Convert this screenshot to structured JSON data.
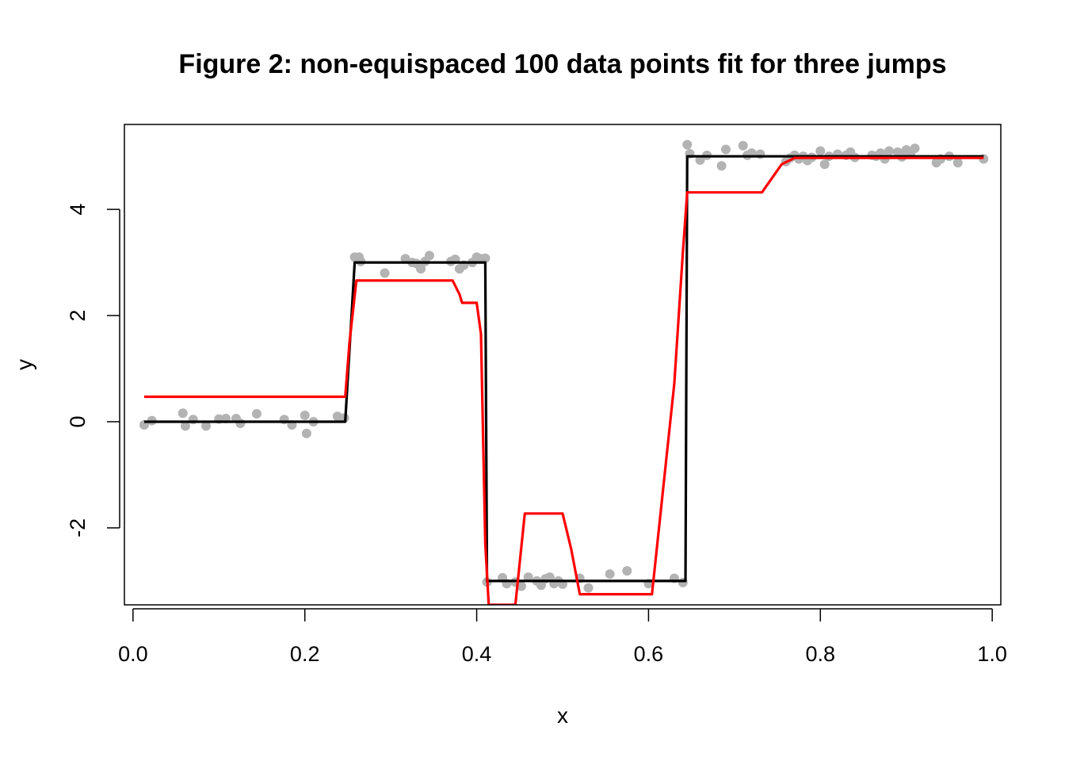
{
  "chart_data": {
    "type": "line",
    "title": "Figure 2: non-equispaced 100 data points fit for three jumps",
    "xlabel": "x",
    "ylabel": "y",
    "xlim": [
      -0.01,
      1.01
    ],
    "ylim": [
      -3.45,
      5.6
    ],
    "x_ticks": [
      0.0,
      0.2,
      0.4,
      0.6,
      0.8,
      1.0
    ],
    "x_tick_labels": [
      "0.0",
      "0.2",
      "0.4",
      "0.6",
      "0.8",
      "1.0"
    ],
    "y_ticks": [
      -2,
      0,
      2,
      4
    ],
    "y_tick_labels": [
      "-2",
      "0",
      "2",
      "4"
    ],
    "grid": false,
    "legend": "none",
    "colors": {
      "points": "#b3b3b3",
      "true_function": "#000000",
      "fitted": "#ff0000"
    },
    "points": {
      "x": [
        0.013,
        0.022,
        0.058,
        0.061,
        0.07,
        0.085,
        0.1,
        0.108,
        0.12,
        0.125,
        0.144,
        0.176,
        0.185,
        0.2,
        0.202,
        0.21,
        0.238,
        0.246,
        0.258,
        0.263,
        0.265,
        0.293,
        0.317,
        0.325,
        0.33,
        0.335,
        0.34,
        0.345,
        0.37,
        0.375,
        0.38,
        0.385,
        0.395,
        0.4,
        0.405,
        0.41,
        0.412,
        0.43,
        0.435,
        0.445,
        0.452,
        0.46,
        0.47,
        0.475,
        0.48,
        0.485,
        0.49,
        0.495,
        0.5,
        0.52,
        0.53,
        0.555,
        0.575,
        0.6,
        0.63,
        0.64,
        0.645,
        0.648,
        0.66,
        0.668,
        0.685,
        0.69,
        0.71,
        0.715,
        0.72,
        0.73,
        0.76,
        0.765,
        0.77,
        0.775,
        0.78,
        0.785,
        0.79,
        0.8,
        0.805,
        0.81,
        0.82,
        0.83,
        0.835,
        0.84,
        0.86,
        0.865,
        0.87,
        0.875,
        0.88,
        0.89,
        0.895,
        0.9,
        0.905,
        0.91,
        0.935,
        0.94,
        0.95,
        0.96,
        0.99
      ],
      "y": [
        -0.06,
        0.02,
        0.16,
        -0.08,
        0.04,
        -0.08,
        0.05,
        0.06,
        0.06,
        -0.03,
        0.15,
        0.04,
        -0.06,
        0.12,
        -0.22,
        0.0,
        0.1,
        0.07,
        3.1,
        3.1,
        3.02,
        2.8,
        3.07,
        3.0,
        2.98,
        2.88,
        3.02,
        3.13,
        3.02,
        3.06,
        2.88,
        2.95,
        3.0,
        3.1,
        3.07,
        3.08,
        -3.02,
        -2.94,
        -3.05,
        -3.02,
        -3.1,
        -2.93,
        -3.0,
        -3.08,
        -2.96,
        -2.93,
        -3.05,
        -3.0,
        -3.06,
        -2.95,
        -3.13,
        -2.87,
        -2.81,
        -3.05,
        -2.95,
        -3.03,
        5.22,
        5.05,
        4.93,
        5.02,
        4.82,
        5.13,
        5.2,
        5.02,
        5.06,
        5.04,
        4.9,
        4.97,
        5.02,
        4.95,
        5.0,
        4.92,
        4.98,
        5.1,
        4.85,
        5.0,
        5.04,
        5.02,
        5.08,
        4.98,
        5.02,
        5.0,
        5.06,
        4.95,
        5.1,
        5.08,
        4.99,
        5.12,
        5.06,
        5.15,
        4.88,
        4.95,
        5.0,
        4.88,
        4.95
      ]
    },
    "series": [
      {
        "x": [
          0.013,
          0.247,
          0.258,
          0.41,
          0.412,
          0.643,
          0.645,
          0.99
        ],
        "y": [
          0.0,
          0.0,
          3.0,
          3.0,
          -3.0,
          -3.0,
          5.0,
          5.0
        ]
      },
      {
        "x": [
          0.013,
          0.247,
          0.252,
          0.26,
          0.372,
          0.38,
          0.383,
          0.4,
          0.405,
          0.41,
          0.414,
          0.445,
          0.456,
          0.5,
          0.51,
          0.52,
          0.604,
          0.63,
          0.64,
          0.645,
          0.732,
          0.755,
          0.77,
          0.99
        ],
        "y": [
          0.47,
          0.47,
          1.5,
          2.66,
          2.66,
          2.4,
          2.24,
          2.24,
          1.65,
          -2.3,
          -3.45,
          -3.45,
          -1.73,
          -1.73,
          -2.4,
          -3.25,
          -3.25,
          0.72,
          3.2,
          4.32,
          4.32,
          4.85,
          4.97,
          4.97
        ]
      }
    ]
  }
}
